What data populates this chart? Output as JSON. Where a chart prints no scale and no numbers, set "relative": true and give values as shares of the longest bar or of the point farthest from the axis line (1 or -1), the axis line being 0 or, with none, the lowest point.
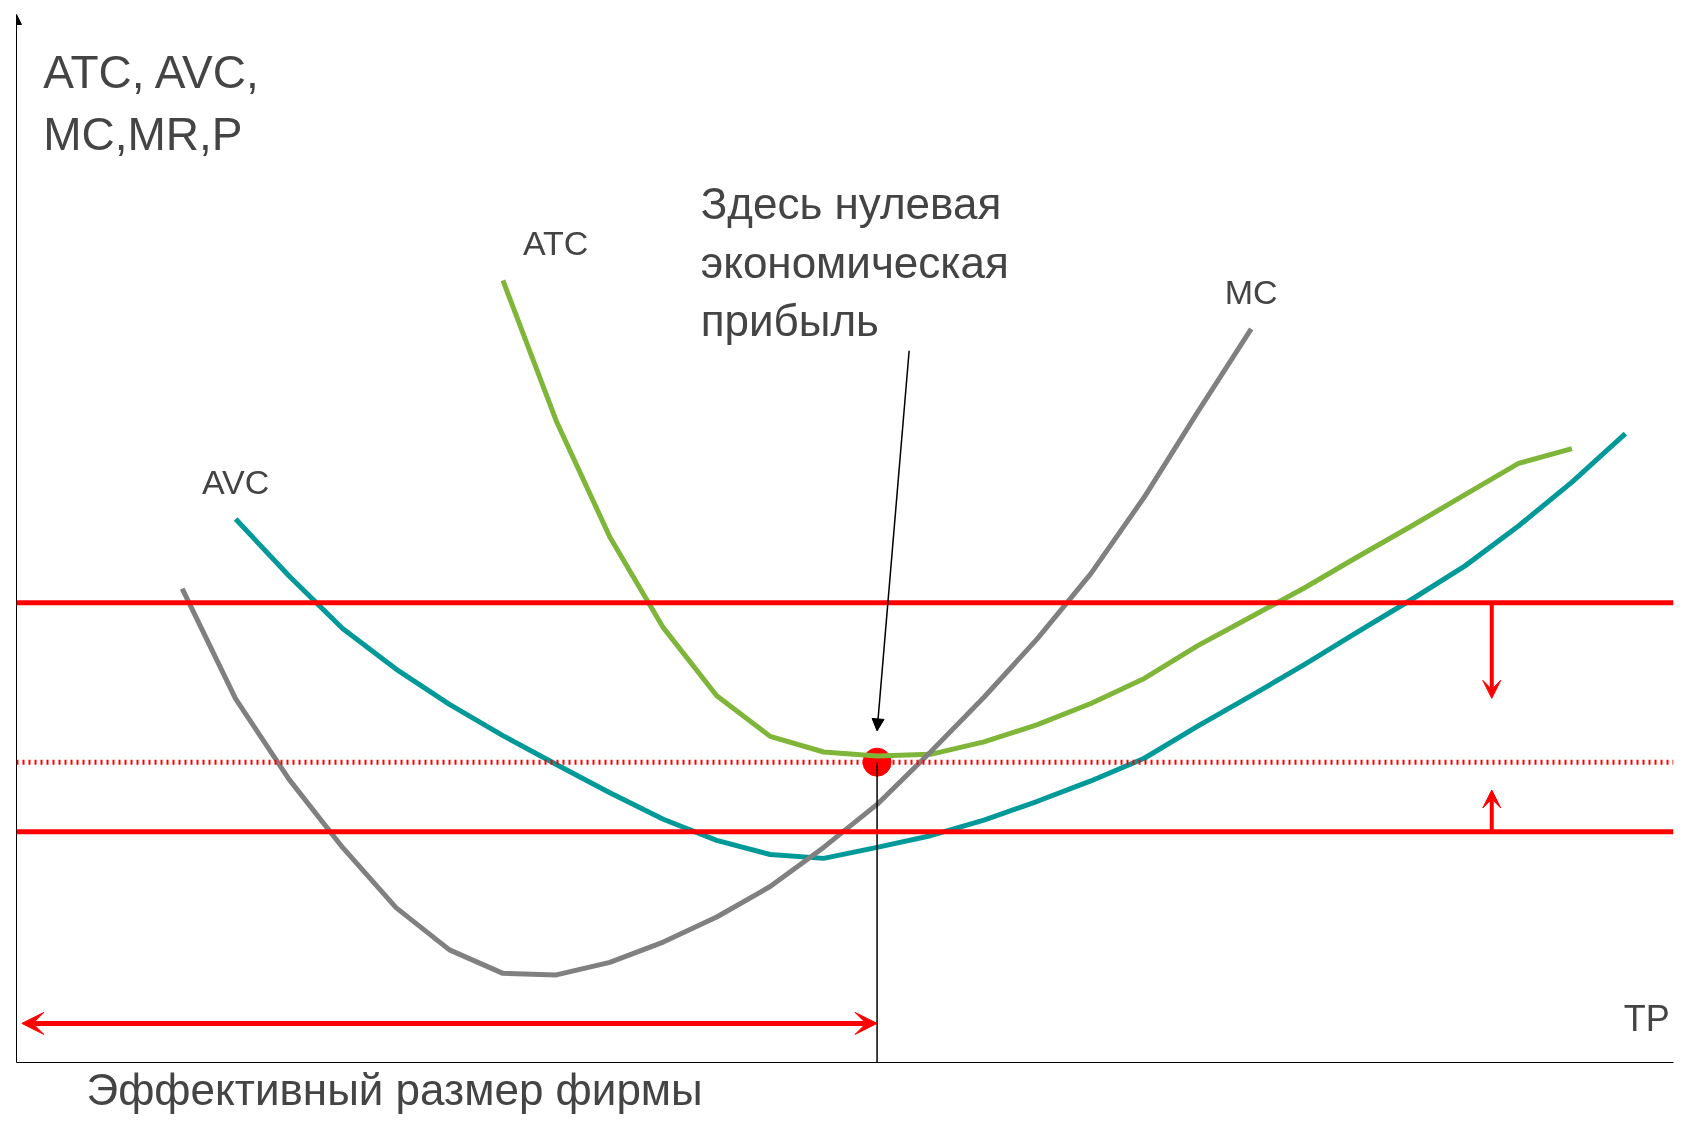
{
  "chart_data": {
    "type": "line",
    "relative": true,
    "ylabel": "ATC, AVC,\nMC,MR,P",
    "xlabel": "TP",
    "categories": [
      null,
      null,
      null,
      null,
      null,
      null,
      null,
      null,
      null,
      null,
      null,
      null,
      null,
      null,
      null,
      null,
      null,
      null,
      null,
      null,
      null,
      null,
      null,
      null,
      null,
      null,
      null,
      null,
      null,
      null,
      null
    ],
    "series": [
      {
        "name": "ATC",
        "color": "#7fb539",
        "values": [
          null,
          null,
          null,
          null,
          null,
          null,
          null,
          null,
          null,
          1.0,
          0.82,
          0.672,
          0.556,
          0.469,
          0.417,
          0.397,
          0.392,
          0.394,
          0.41,
          0.432,
          0.459,
          0.491,
          0.533,
          0.57,
          0.607,
          0.647,
          0.686,
          0.726,
          0.766,
          0.785,
          null
        ]
      },
      {
        "name": "AVC",
        "color": "#009999",
        "values": [
          null,
          null,
          null,
          null,
          0.695,
          0.622,
          0.555,
          0.503,
          0.458,
          0.418,
          0.381,
          0.345,
          0.311,
          0.284,
          0.266,
          0.261,
          0.275,
          0.29,
          0.31,
          0.334,
          0.36,
          0.389,
          0.43,
          0.469,
          0.509,
          0.551,
          0.592,
          0.635,
          0.686,
          0.742,
          0.804
        ]
      },
      {
        "name": "MC",
        "color": "#808080",
        "values": [
          null,
          null,
          null,
          0.606,
          0.465,
          0.362,
          0.275,
          0.198,
          0.144,
          0.114,
          0.112,
          0.128,
          0.154,
          0.186,
          0.225,
          0.275,
          0.33,
          0.397,
          0.467,
          0.542,
          0.625,
          0.723,
          0.832,
          0.938,
          null,
          null,
          null,
          null,
          null,
          null,
          null
        ]
      }
    ],
    "ref_lines": [
      {
        "axis": "y",
        "value": 0.588,
        "color": "#ff0000",
        "line_style": "solid"
      },
      {
        "axis": "y",
        "value": 0.384,
        "color": "#ff0000",
        "line_style": "dotted"
      },
      {
        "axis": "y",
        "value": 0.295,
        "color": "#ff0000",
        "line_style": "solid"
      }
    ],
    "annotations": [
      "Здесь нулевая\nэкономическая\nприбыль",
      "Эффективный размер фирмы"
    ],
    "legend": false,
    "grid": false
  }
}
